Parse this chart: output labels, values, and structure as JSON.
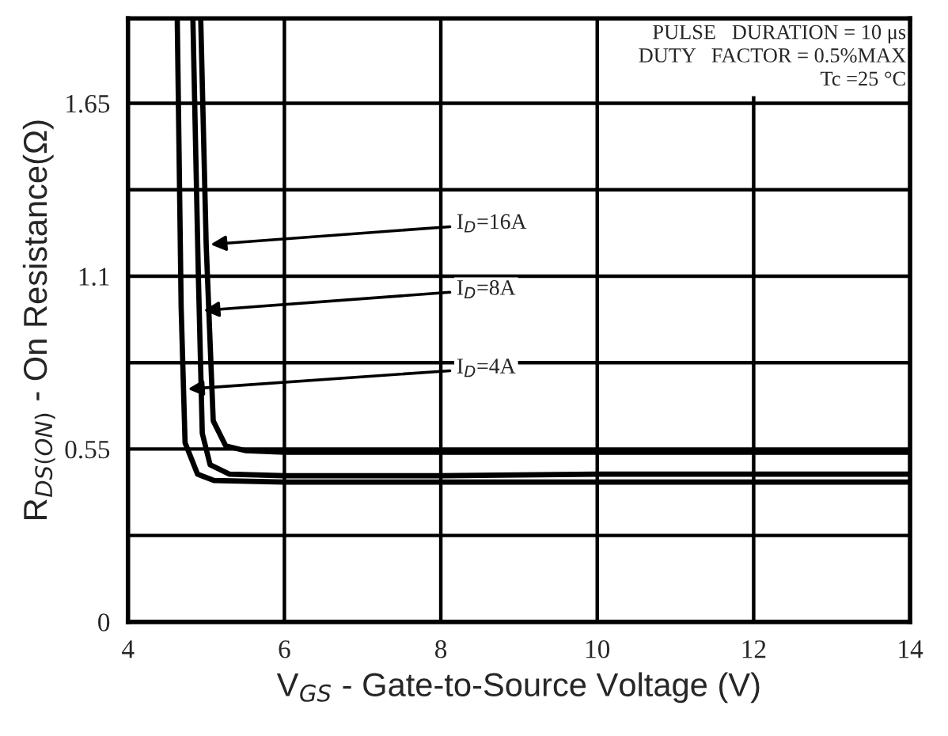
{
  "chart_data": {
    "type": "line",
    "xlabel": "V$_{GS}$ - Gate-to-Source Voltage (V)",
    "ylabel": "R$_{DS(ON)}$ - On Resistance(Ω)",
    "xlim": [
      4,
      14
    ],
    "xticks": [
      4,
      6,
      8,
      10,
      12,
      14
    ],
    "ylim": [
      0,
      1.92
    ],
    "yticks": [
      0,
      {
        "value": 0.275,
        "label": null
      },
      0.55,
      {
        "value": 0.825,
        "label": null
      },
      1.1,
      {
        "value": 1.375,
        "label": null
      },
      1.65
    ],
    "grid": true,
    "legend": false,
    "marker": "none",
    "line_style": "solid",
    "series": [
      {
        "color": "#000000",
        "x": [
          4.93,
          5.0,
          5.09,
          5.25,
          5.5,
          6,
          8,
          10,
          12,
          14
        ],
        "values": [
          1.92,
          1.2,
          0.64,
          0.56,
          0.545,
          0.54,
          0.54,
          0.54,
          0.54,
          0.54
        ]
      },
      {
        "color": "#000000",
        "x": [
          4.83,
          4.9,
          4.95,
          5.05,
          5.3,
          6,
          8,
          10,
          12,
          14
        ],
        "values": [
          1.92,
          1.1,
          0.6,
          0.5,
          0.47,
          0.465,
          0.465,
          0.47,
          0.47,
          0.47
        ]
      },
      {
        "color": "#000000",
        "x": [
          4.63,
          4.68,
          4.73,
          4.89,
          5.1,
          6,
          8,
          10,
          12,
          14
        ],
        "values": [
          1.92,
          1.0,
          0.57,
          0.47,
          0.45,
          0.445,
          0.445,
          0.445,
          0.445,
          0.445
        ]
      }
    ],
    "annotations": [
      {
        "text": "I$_{D}$=16A",
        "x": 5.0,
        "y": 1.2
      },
      {
        "text": "I$_{D}$=8A",
        "x": 4.91,
        "y": 0.99
      },
      {
        "text": "I$_{D}$=4A",
        "x": 4.71,
        "y": 0.74
      },
      "PULSE   DURATION = 10 μs\nDUTY   FACTOR = 0.5%MAX\nTc =25 °C"
    ]
  }
}
